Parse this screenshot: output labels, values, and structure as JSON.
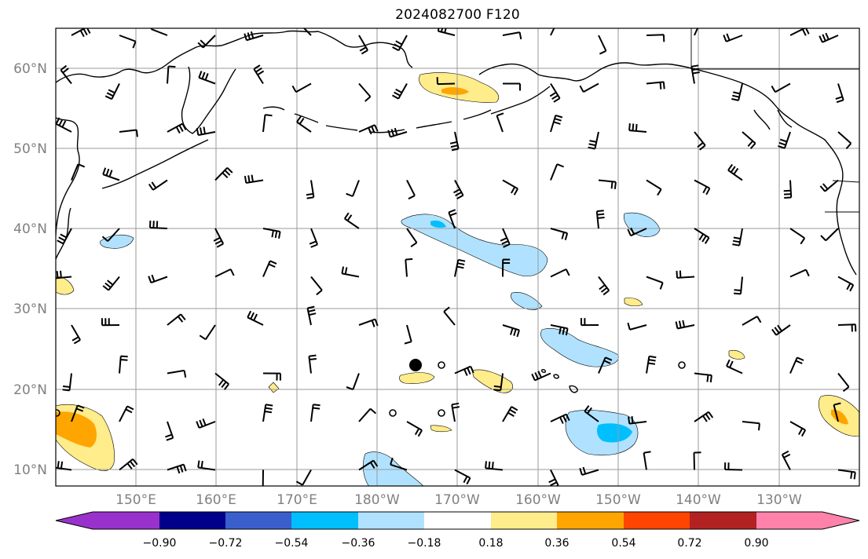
{
  "title": "2024082700 F120",
  "map": {
    "lat_labels": [
      "60°N",
      "50°N",
      "40°N",
      "30°N",
      "20°N",
      "10°N"
    ],
    "lon_labels": [
      "150°E",
      "160°E",
      "170°E",
      "180°W",
      "170°W",
      "160°W",
      "150°W",
      "140°W",
      "130°W"
    ],
    "lat_range": [
      8,
      65
    ],
    "lon_range": [
      140,
      240
    ],
    "gridlines": true,
    "features": [
      "coastlines",
      "country borders",
      "contour fill",
      "wind barbs",
      "tropical cyclone marker"
    ]
  },
  "colorbar": {
    "ticks": [
      "−0.90",
      "−0.72",
      "−0.54",
      "−0.36",
      "−0.18",
      "0.18",
      "0.36",
      "0.54",
      "0.72",
      "0.90"
    ],
    "colors": [
      "#9932CC",
      "#00008B",
      "#3A5FCD",
      "#00BFFF",
      "#B0E2FF",
      "#FFFFFF",
      "#FFEC8B",
      "#FFA500",
      "#FF4500",
      "#B22222",
      "#FF82AB"
    ],
    "extend": "both"
  },
  "chart_data": {
    "type": "heatmap",
    "title": "2024082700 F120",
    "xlabel": "",
    "ylabel": "",
    "xlim": [
      140,
      240
    ],
    "ylim": [
      8,
      65
    ],
    "levels": [
      -0.9,
      -0.72,
      -0.54,
      -0.36,
      -0.18,
      0.18,
      0.36,
      0.54,
      0.72,
      0.9
    ],
    "cyclone_marker": {
      "lon": 185,
      "lat": 23
    }
  }
}
